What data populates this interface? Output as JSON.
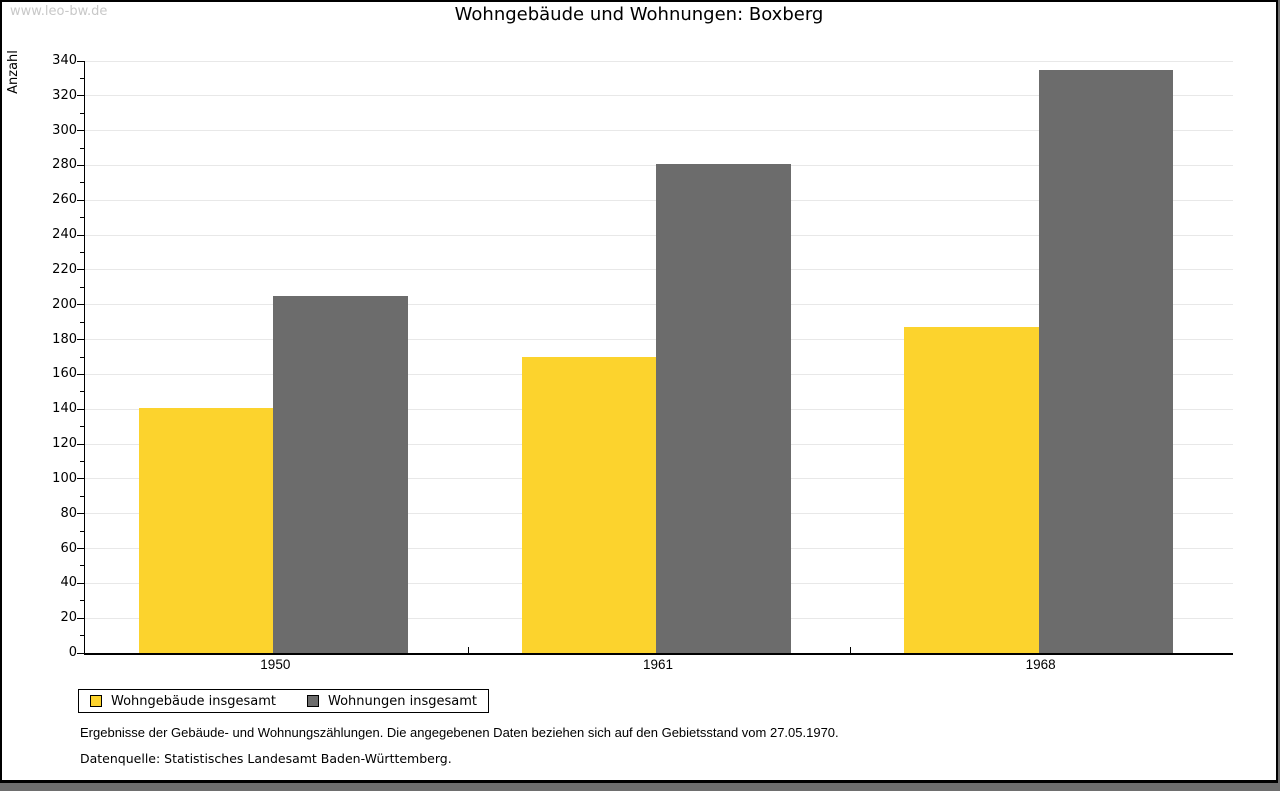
{
  "watermark": "www.leo-bw.de",
  "title": "Wohngebäude und Wohnungen: Boxberg",
  "chart_data": {
    "type": "bar",
    "title": "Wohngebäude und Wohnungen: Boxberg",
    "ylabel": "Anzahl",
    "xlabel": "",
    "categories": [
      "1950",
      "1961",
      "1968"
    ],
    "series": [
      {
        "name": "Wohngebäude insgesamt",
        "color": "#fcd32d",
        "values": [
          141,
          170,
          187
        ]
      },
      {
        "name": "Wohnungen insgesamt",
        "color": "#6c6c6c",
        "values": [
          205,
          281,
          335
        ]
      }
    ],
    "ylim": [
      0,
      340
    ],
    "ytick_step": 20,
    "minor_tick_step": 10,
    "grid": true,
    "legend_position": "bottom"
  },
  "footnotes": [
    "Ergebnisse der Gebäude- und Wohnungszählungen. Die angegebenen Daten beziehen sich auf den Gebietsstand vom 27.05.1970.",
    "Datenquelle: Statistisches Landesamt Baden-Württemberg."
  ]
}
